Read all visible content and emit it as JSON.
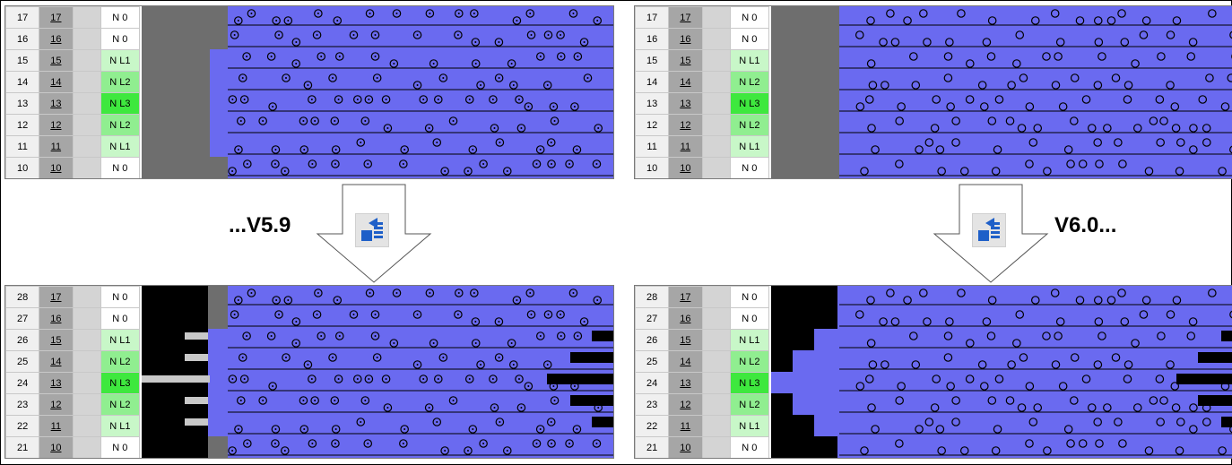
{
  "labels": {
    "left": "...V5.9",
    "right": "V6.0..."
  },
  "colors": {
    "lane": "#6a6af0",
    "gray_block": "#6e6e6e",
    "black_block": "#000000",
    "light_gray_step": "#c8c8c8"
  },
  "icon": "update-arrow-icon",
  "panels": {
    "top_left": {
      "rows": [
        {
          "a": "17",
          "b": "17",
          "c": "N 0",
          "lvl": "0"
        },
        {
          "a": "16",
          "b": "16",
          "c": "N 0",
          "lvl": "0"
        },
        {
          "a": "15",
          "b": "15",
          "c": "N L1",
          "lvl": "1"
        },
        {
          "a": "14",
          "b": "14",
          "c": "N L2",
          "lvl": "2"
        },
        {
          "a": "13",
          "b": "13",
          "c": "N L3",
          "lvl": "3"
        },
        {
          "a": "12",
          "b": "12",
          "c": "N L2",
          "lvl": "2"
        },
        {
          "a": "11",
          "b": "11",
          "c": "N L1",
          "lvl": "1"
        },
        {
          "a": "10",
          "b": "10",
          "c": "N 0",
          "lvl": "0"
        }
      ]
    },
    "top_right": {
      "rows": [
        {
          "a": "17",
          "b": "17",
          "c": "N 0",
          "lvl": "0"
        },
        {
          "a": "16",
          "b": "16",
          "c": "N 0",
          "lvl": "0"
        },
        {
          "a": "15",
          "b": "15",
          "c": "N L1",
          "lvl": "1"
        },
        {
          "a": "14",
          "b": "14",
          "c": "N L2",
          "lvl": "2"
        },
        {
          "a": "13",
          "b": "13",
          "c": "N L3",
          "lvl": "3"
        },
        {
          "a": "12",
          "b": "12",
          "c": "N L2",
          "lvl": "2"
        },
        {
          "a": "11",
          "b": "11",
          "c": "N L1",
          "lvl": "1"
        },
        {
          "a": "10",
          "b": "10",
          "c": "N 0",
          "lvl": "0"
        }
      ]
    },
    "bottom_left": {
      "rows": [
        {
          "a": "28",
          "b": "17",
          "c": "N 0",
          "lvl": "0"
        },
        {
          "a": "27",
          "b": "16",
          "c": "N 0",
          "lvl": "0"
        },
        {
          "a": "26",
          "b": "15",
          "c": "N L1",
          "lvl": "1"
        },
        {
          "a": "25",
          "b": "14",
          "c": "N L2",
          "lvl": "2"
        },
        {
          "a": "24",
          "b": "13",
          "c": "N L3",
          "lvl": "3"
        },
        {
          "a": "23",
          "b": "12",
          "c": "N L2",
          "lvl": "2"
        },
        {
          "a": "22",
          "b": "11",
          "c": "N L1",
          "lvl": "1"
        },
        {
          "a": "21",
          "b": "10",
          "c": "N 0",
          "lvl": "0"
        }
      ]
    },
    "bottom_right": {
      "rows": [
        {
          "a": "28",
          "b": "17",
          "c": "N 0",
          "lvl": "0"
        },
        {
          "a": "27",
          "b": "16",
          "c": "N 0",
          "lvl": "0"
        },
        {
          "a": "26",
          "b": "15",
          "c": "N L1",
          "lvl": "1"
        },
        {
          "a": "25",
          "b": "14",
          "c": "N L2",
          "lvl": "2"
        },
        {
          "a": "24",
          "b": "13",
          "c": "N L3",
          "lvl": "3"
        },
        {
          "a": "23",
          "b": "12",
          "c": "N L2",
          "lvl": "2"
        },
        {
          "a": "22",
          "b": "11",
          "c": "N L1",
          "lvl": "1"
        },
        {
          "a": "21",
          "b": "10",
          "c": "N 0",
          "lvl": "0"
        }
      ]
    }
  }
}
